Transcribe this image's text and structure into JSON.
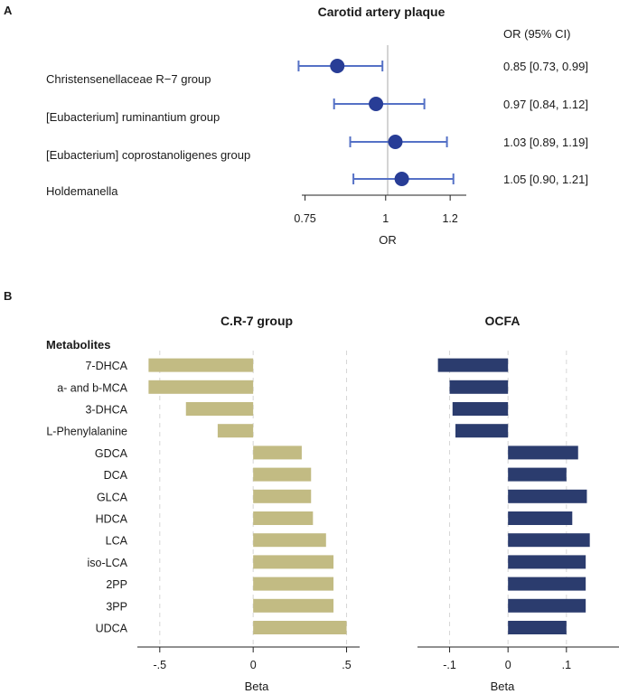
{
  "panel_a_label": "A",
  "panel_b_label": "B",
  "chart_data": [
    {
      "type": "scatter",
      "subtype": "forest",
      "title": "Carotid artery plaque",
      "xlabel": "OR",
      "ci_header": "OR (95% CI)",
      "reference_line": 1,
      "xlim": [
        0.74,
        1.25
      ],
      "xticks": [
        0.75,
        1,
        1.2
      ],
      "xtick_labels": [
        "0.75",
        "1",
        "1.2"
      ],
      "rows": [
        {
          "label": "Christensenellaceae R−7 group",
          "or": 0.85,
          "low": 0.73,
          "high": 0.99,
          "ci_text": "0.85 [0.73, 0.99]"
        },
        {
          "label": "[Eubacterium] ruminantium group",
          "or": 0.97,
          "low": 0.84,
          "high": 1.12,
          "ci_text": "0.97 [0.84, 1.12]"
        },
        {
          "label": "[Eubacterium] coprostanoligenes group",
          "or": 1.03,
          "low": 0.89,
          "high": 1.19,
          "ci_text": "1.03 [0.89, 1.19]"
        },
        {
          "label": "Holdemanella",
          "or": 1.05,
          "low": 0.9,
          "high": 1.21,
          "ci_text": "1.05 [0.90, 1.21]"
        }
      ],
      "color": "#283d96",
      "ci_color": "#5571c6"
    },
    {
      "type": "bar",
      "orientation": "horizontal",
      "y_header": "Metabolites",
      "categories": [
        "7-DHCA",
        "a- and b-MCA",
        "3-DHCA",
        "L-Phenylalanine",
        "GDCA",
        "DCA",
        "GLCA",
        "HDCA",
        "LCA",
        "iso-LCA",
        "2PP",
        "3PP",
        "UDCA"
      ],
      "panels": [
        {
          "title": "C.R-7 group",
          "xlabel": "Beta",
          "xlim": [
            -0.62,
            0.57
          ],
          "xticks": [
            -0.5,
            0,
            0.5
          ],
          "xtick_labels": [
            "-.5",
            "0",
            ".5"
          ],
          "values": [
            -0.56,
            -0.56,
            -0.36,
            -0.19,
            0.26,
            0.31,
            0.31,
            0.32,
            0.39,
            0.43,
            0.43,
            0.43,
            0.5
          ],
          "color": "#c2bb83"
        },
        {
          "title": "OCFA",
          "xlabel": "Beta",
          "xlim": [
            -0.155,
            0.19
          ],
          "xticks": [
            -0.1,
            0,
            0.1,
            0.2
          ],
          "xtick_labels": [
            "-.1",
            "0",
            ".1",
            "."
          ],
          "values": [
            -0.12,
            -0.1,
            -0.095,
            -0.09,
            0.12,
            0.1,
            0.135,
            0.11,
            0.14,
            0.133,
            0.133,
            0.133,
            0.1
          ],
          "color": "#2b3c6e"
        }
      ]
    }
  ]
}
